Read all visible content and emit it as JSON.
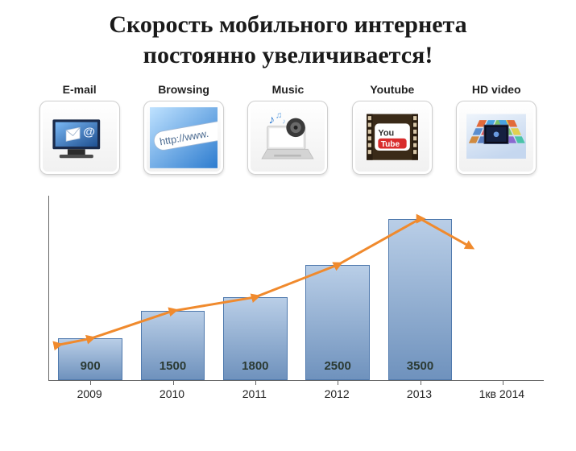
{
  "title_line1": "Скорость мобильного интернета",
  "title_line2": "постоянно увеличивается!",
  "title_fontsize": 30,
  "categories": [
    {
      "label": "E-mail",
      "icon": "email"
    },
    {
      "label": "Browsing",
      "icon": "browsing"
    },
    {
      "label": "Music",
      "icon": "music"
    },
    {
      "label": "Youtube",
      "icon": "youtube"
    },
    {
      "label": "HD video",
      "icon": "hdvideo"
    }
  ],
  "chart": {
    "type": "bar+line",
    "x_labels": [
      "2009",
      "2010",
      "2011",
      "2012",
      "2013",
      "1кв 2014"
    ],
    "values": [
      900,
      1500,
      1800,
      2500,
      3500
    ],
    "bar_fill_top": "#b9cee7",
    "bar_fill_bottom": "#6f92bd",
    "bar_border": "#4f79ad",
    "bar_width_ratio": 0.78,
    "value_label_fontsize": 15,
    "value_label_color": "#2b3a33",
    "line_color": "#f08a2d",
    "line_width": 3,
    "marker_color": "#f08a2d",
    "marker_size": 8,
    "ylim": [
      0,
      4000
    ],
    "axis_color": "#666666",
    "x_label_fontsize": 14,
    "bar_slots_total": 6,
    "bars_drawn": 5
  },
  "colors": {
    "background": "#ffffff",
    "card_border": "#cfcfcf"
  }
}
